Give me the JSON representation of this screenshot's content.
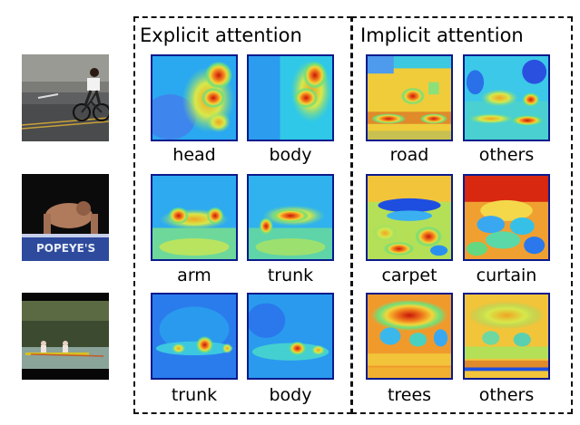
{
  "groups": {
    "explicit": {
      "title": "Explicit attention"
    },
    "implicit": {
      "title": "Implicit attention"
    }
  },
  "rows": [
    {
      "photo": "cyclist-on-road",
      "explicit": [
        "head",
        "body"
      ],
      "implicit": [
        "road",
        "others"
      ]
    },
    {
      "photo": "person-doing-pushups",
      "explicit": [
        "arm",
        "trunk"
      ],
      "implicit": [
        "carpet",
        "curtain"
      ]
    },
    {
      "photo": "rowers-on-river",
      "explicit": [
        "trunk",
        "body"
      ],
      "implicit": [
        "trees",
        "others"
      ]
    }
  ],
  "colors": {
    "heat_low": "#1e4fe0",
    "heat_mid": "#39e08a",
    "heat_warm": "#f4d23a",
    "heat_high": "#d8230f",
    "frame": "#0a1a8c"
  }
}
